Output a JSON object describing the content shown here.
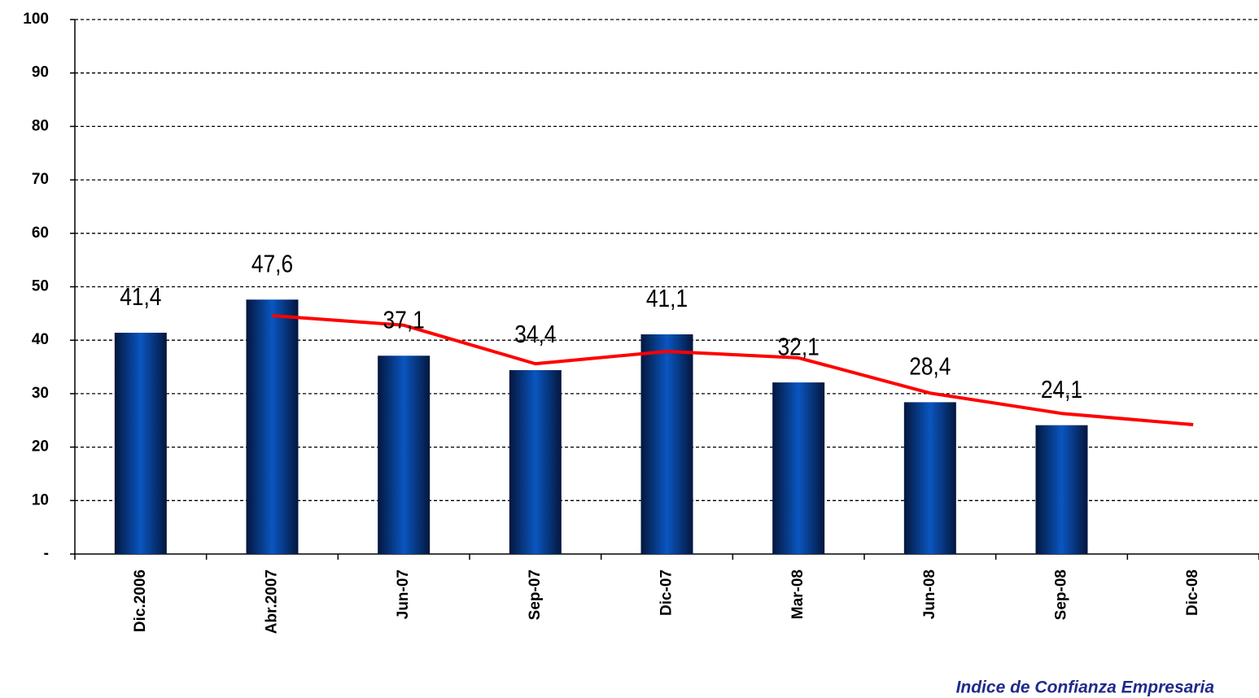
{
  "chart_data": {
    "type": "bar",
    "source": "Indice de Confianza Empresaria",
    "categories": [
      "Dic.2006",
      "Abr.2007",
      "Jun-07",
      "Sep-07",
      "Dic-07",
      "Mar-08",
      "Jun-08",
      "Sep-08",
      "Dic-08"
    ],
    "series": [
      {
        "type": "bar",
        "color": "#0a56c0",
        "values": [
          41.4,
          47.6,
          37.1,
          34.4,
          41.1,
          32.1,
          28.4,
          24.1,
          null
        ],
        "value_labels": [
          "41,4",
          "47,6",
          "37,1",
          "34,4",
          "41,1",
          "32,1",
          "28,4",
          "24,1",
          null
        ]
      },
      {
        "type": "line",
        "color": "#ff0000",
        "values": [
          null,
          44.6,
          42.8,
          35.6,
          37.9,
          36.7,
          30.1,
          26.3,
          24.2
        ]
      }
    ],
    "ylim": [
      0,
      100
    ],
    "yticks": [
      {
        "value": 0,
        "label": "-"
      },
      10,
      20,
      30,
      40,
      50,
      60,
      70,
      80,
      90,
      100
    ],
    "grid": true
  }
}
